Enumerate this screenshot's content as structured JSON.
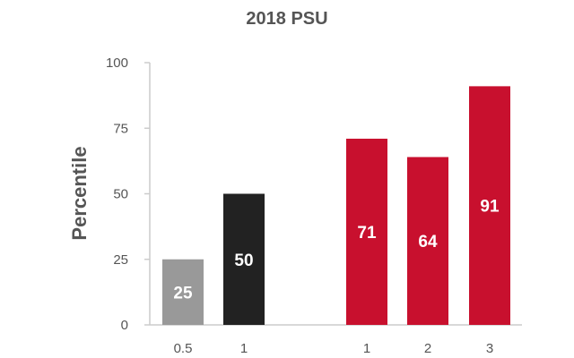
{
  "chart_data": {
    "type": "bar",
    "title": "2018 PSU",
    "xlabel": "",
    "ylabel": "Percentile",
    "ylim": [
      0,
      100
    ],
    "yticks": [
      0,
      25,
      50,
      75,
      100
    ],
    "grid": false,
    "legend": "none",
    "categories": [
      "0.5",
      "1",
      "1",
      "2",
      "3"
    ],
    "values": [
      25,
      50,
      71,
      64,
      91
    ],
    "data_labels": [
      "25",
      "50",
      "71",
      "64",
      "91"
    ],
    "colors": [
      "#999999",
      "#222222",
      "#c8102e",
      "#c8102e",
      "#c8102e"
    ]
  },
  "colors": {
    "axis": "#cccccc",
    "text": "#555555",
    "label_text": "#ffffff"
  }
}
